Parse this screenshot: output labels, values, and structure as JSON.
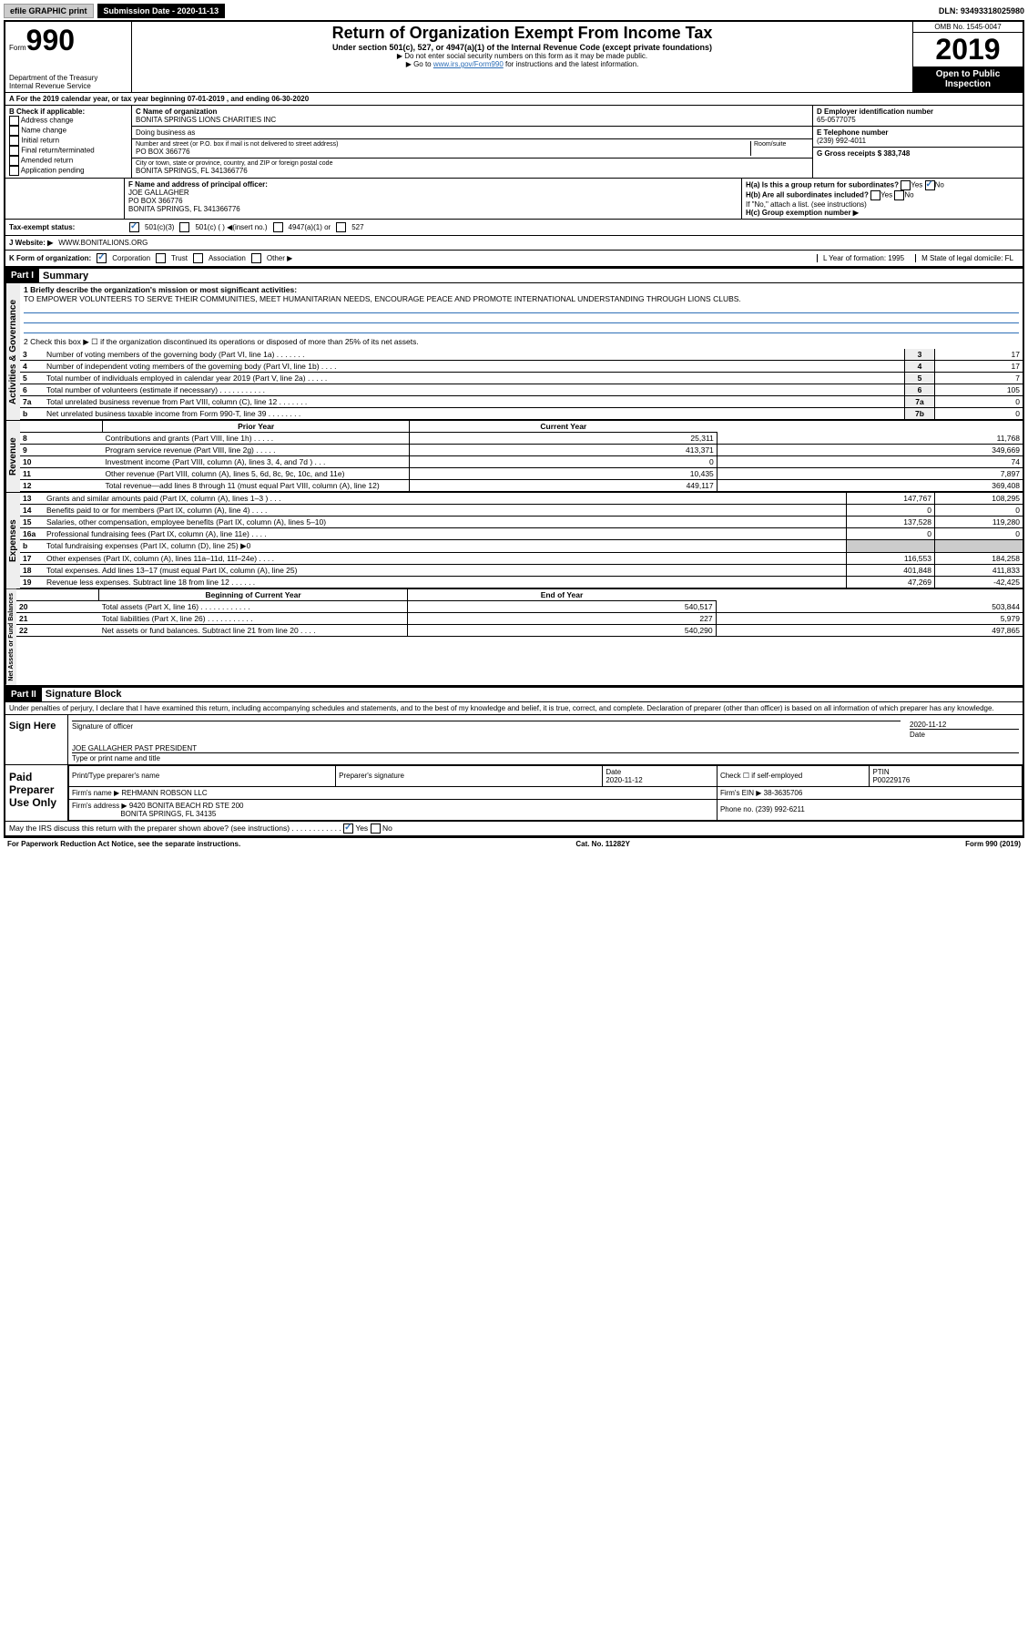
{
  "topbar": {
    "efile": "efile GRAPHIC print",
    "submission_label": "Submission Date - 2020-11-13",
    "dln": "DLN: 93493318025980"
  },
  "header": {
    "form_word": "Form",
    "form_num": "990",
    "dept1": "Department of the Treasury",
    "dept2": "Internal Revenue Service",
    "title": "Return of Organization Exempt From Income Tax",
    "sub": "Under section 501(c), 527, or 4947(a)(1) of the Internal Revenue Code (except private foundations)",
    "note1": "▶ Do not enter social security numbers on this form as it may be made public.",
    "note2_pre": "▶ Go to ",
    "note2_link": "www.irs.gov/Form990",
    "note2_post": " for instructions and the latest information.",
    "omb": "OMB No. 1545-0047",
    "year": "2019",
    "open": "Open to Public Inspection"
  },
  "rowA": "A  For the 2019 calendar year, or tax year beginning 07-01-2019   , and ending 06-30-2020",
  "colB": {
    "title": "B Check if applicable:",
    "opts": [
      "Address change",
      "Name change",
      "Initial return",
      "Final return/terminated",
      "Amended return",
      "Application pending"
    ]
  },
  "colC": {
    "name_label": "C Name of organization",
    "name": "BONITA SPRINGS LIONS CHARITIES INC",
    "dba": "Doing business as",
    "addr_label": "Number and street (or P.O. box if mail is not delivered to street address)",
    "room": "Room/suite",
    "addr": "PO BOX 366776",
    "city_label": "City or town, state or province, country, and ZIP or foreign postal code",
    "city": "BONITA SPRINGS, FL  341366776"
  },
  "colD": {
    "d": "D Employer identification number",
    "ein": "65-0577075",
    "e": "E Telephone number",
    "phone": "(239) 992-4011",
    "g": "G Gross receipts $ 383,748"
  },
  "rowF": {
    "label": "F Name and address of principal officer:",
    "name": "JOE GALLAGHER",
    "addr1": "PO BOX 366776",
    "addr2": "BONITA SPRINGS, FL  341366776"
  },
  "rowH": {
    "ha": "H(a)  Is this a group return for subordinates?",
    "hb": "H(b)  Are all subordinates included?",
    "hnote": "If \"No,\" attach a list. (see instructions)",
    "hc": "H(c)  Group exemption number ▶",
    "yes": "Yes",
    "no": "No"
  },
  "tax": {
    "label": "Tax-exempt status:",
    "o1": "501(c)(3)",
    "o2": "501(c) (  ) ◀(insert no.)",
    "o3": "4947(a)(1) or",
    "o4": "527"
  },
  "website": {
    "label": "J   Website: ▶",
    "value": "WWW.BONITALIONS.ORG"
  },
  "korg": {
    "k": "K Form of organization:",
    "corp": "Corporation",
    "trust": "Trust",
    "assoc": "Association",
    "other": "Other ▶",
    "l": "L Year of formation: 1995",
    "m": "M State of legal domicile: FL"
  },
  "part1": {
    "header": "Part I",
    "title": "Summary",
    "q1": "1  Briefly describe the organization's mission or most significant activities:",
    "mission": "TO EMPOWER VOLUNTEERS TO SERVE THEIR COMMUNITIES, MEET HUMANITARIAN NEEDS, ENCOURAGE PEACE AND PROMOTE INTERNATIONAL UNDERSTANDING THROUGH LIONS CLUBS.",
    "q2": "2   Check this box ▶ ☐  if the organization discontinued its operations or disposed of more than 25% of its net assets.",
    "lines_ag": [
      {
        "n": "3",
        "label": "Number of voting members of the governing body (Part VI, line 1a)   .    .    .    .    .    .    .",
        "box": "3",
        "v": "17"
      },
      {
        "n": "4",
        "label": "Number of independent voting members of the governing body (Part VI, line 1b)  .    .    .    .",
        "box": "4",
        "v": "17"
      },
      {
        "n": "5",
        "label": "Total number of individuals employed in calendar year 2019 (Part V, line 2a)  .    .    .    .    .",
        "box": "5",
        "v": "7"
      },
      {
        "n": "6",
        "label": "Total number of volunteers (estimate if necessary)    .    .    .    .    .    .    .    .    .    .    .",
        "box": "6",
        "v": "105"
      },
      {
        "n": "7a",
        "label": "Total unrelated business revenue from Part VIII, column (C), line 12   .    .    .    .    .    .    .",
        "box": "7a",
        "v": "0"
      },
      {
        "n": "b",
        "label": "Net unrelated business taxable income from Form 990-T, line 39   .    .    .    .    .    .    .    .",
        "box": "7b",
        "v": "0"
      }
    ],
    "prior": "Prior Year",
    "current": "Current Year",
    "rev": [
      {
        "n": "8",
        "label": "Contributions and grants (Part VIII, line 1h)   .    .    .    .    .",
        "p": "25,311",
        "c": "11,768"
      },
      {
        "n": "9",
        "label": "Program service revenue (Part VIII, line 2g)   .    .    .    .    .",
        "p": "413,371",
        "c": "349,669"
      },
      {
        "n": "10",
        "label": "Investment income (Part VIII, column (A), lines 3, 4, and 7d )   .    .    .",
        "p": "0",
        "c": "74"
      },
      {
        "n": "11",
        "label": "Other revenue (Part VIII, column (A), lines 5, 6d, 8c, 9c, 10c, and 11e)",
        "p": "10,435",
        "c": "7,897"
      },
      {
        "n": "12",
        "label": "Total revenue—add lines 8 through 11 (must equal Part VIII, column (A), line 12)",
        "p": "449,117",
        "c": "369,408"
      }
    ],
    "exp": [
      {
        "n": "13",
        "label": "Grants and similar amounts paid (Part IX, column (A), lines 1–3 )   .    .    .",
        "p": "147,767",
        "c": "108,295"
      },
      {
        "n": "14",
        "label": "Benefits paid to or for members (Part IX, column (A), line 4)   .    .    .    .",
        "p": "0",
        "c": "0"
      },
      {
        "n": "15",
        "label": "Salaries, other compensation, employee benefits (Part IX, column (A), lines 5–10)",
        "p": "137,528",
        "c": "119,280"
      },
      {
        "n": "16a",
        "label": "Professional fundraising fees (Part IX, column (A), line 11e)   .    .    .    .",
        "p": "0",
        "c": "0"
      },
      {
        "n": "b",
        "label": "Total fundraising expenses (Part IX, column (D), line 25) ▶0",
        "p": "",
        "c": "",
        "shade": true
      },
      {
        "n": "17",
        "label": "Other expenses (Part IX, column (A), lines 11a–11d, 11f–24e)   .    .    .    .",
        "p": "116,553",
        "c": "184,258"
      },
      {
        "n": "18",
        "label": "Total expenses. Add lines 13–17 (must equal Part IX, column (A), line 25)",
        "p": "401,848",
        "c": "411,833"
      },
      {
        "n": "19",
        "label": "Revenue less expenses. Subtract line 18 from line 12  .    .    .    .    .    .",
        "p": "47,269",
        "c": "-42,425"
      }
    ],
    "boy": "Beginning of Current Year",
    "eoy": "End of Year",
    "net": [
      {
        "n": "20",
        "label": "Total assets (Part X, line 16)  .    .    .    .    .    .    .    .    .    .    .    .",
        "p": "540,517",
        "c": "503,844"
      },
      {
        "n": "21",
        "label": "Total liabilities (Part X, line 26)  .    .    .    .    .    .    .    .    .    .    .",
        "p": "227",
        "c": "5,979"
      },
      {
        "n": "22",
        "label": "Net assets or fund balances. Subtract line 21 from line 20   .    .    .    .",
        "p": "540,290",
        "c": "497,865"
      }
    ],
    "vlab_ag": "Activities & Governance",
    "vlab_rev": "Revenue",
    "vlab_exp": "Expenses",
    "vlab_net": "Net Assets or Fund Balances"
  },
  "part2": {
    "header": "Part II",
    "title": "Signature Block",
    "decl": "Under penalties of perjury, I declare that I have examined this return, including accompanying schedules and statements, and to the best of my knowledge and belief, it is true, correct, and complete. Declaration of preparer (other than officer) is based on all information of which preparer has any knowledge.",
    "sign_here": "Sign Here",
    "sig_officer": "Signature of officer",
    "date": "Date",
    "sig_date": "2020-11-12",
    "name_title": "JOE GALLAGHER  PAST PRESIDENT",
    "type_label": "Type or print name and title",
    "paid": "Paid Preparer Use Only",
    "pt_name": "Print/Type preparer's name",
    "pt_sig": "Preparer's signature",
    "pt_date": "Date",
    "pt_date_v": "2020-11-12",
    "pt_check": "Check ☐ if self-employed",
    "ptin_l": "PTIN",
    "ptin": "P00229176",
    "firm_name_l": "Firm's name    ▶",
    "firm_name": "REHMANN ROBSON LLC",
    "firm_ein_l": "Firm's EIN ▶",
    "firm_ein": "38-3635706",
    "firm_addr_l": "Firm's address ▶",
    "firm_addr1": "9420 BONITA BEACH RD STE 200",
    "firm_addr2": "BONITA SPRINGS, FL  34135",
    "firm_phone_l": "Phone no.",
    "firm_phone": "(239) 992-6211",
    "discuss": "May the IRS discuss this return with the preparer shown above? (see instructions)   .    .    .    .    .    .    .    .    .    .    .    .",
    "yes": "Yes",
    "no": "No"
  },
  "footer": {
    "pra": "For Paperwork Reduction Act Notice, see the separate instructions.",
    "cat": "Cat. No. 11282Y",
    "form": "Form 990 (2019)"
  }
}
